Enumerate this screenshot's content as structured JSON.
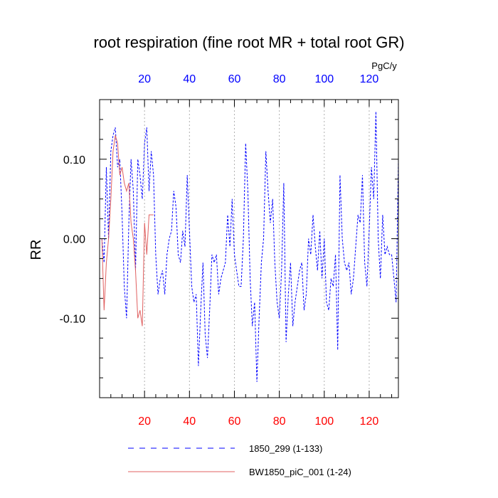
{
  "chart_data": {
    "type": "line",
    "title": "root respiration (fine root MR + total root GR)",
    "ylabel": "RR",
    "xlabel": "",
    "top_axis_units": "PgC/y",
    "xlim": [
      0,
      133
    ],
    "ylim": [
      -0.2,
      0.175
    ],
    "x_ticks": [
      20,
      40,
      60,
      80,
      100,
      120
    ],
    "x_tick_labels": [
      "20",
      "40",
      "60",
      "80",
      "100",
      "120"
    ],
    "y_ticks": [
      0.1,
      0.0,
      -0.1
    ],
    "y_tick_labels": [
      "0.10",
      "0.00",
      "-0.10"
    ],
    "grid": "vertical dotted",
    "colors": {
      "series1": "#0000ff",
      "series2": "#e06060",
      "bottom_ticks": "#ff0000",
      "top_ticks": "#0000ff"
    },
    "series": [
      {
        "name": "1850_299 (1-133)",
        "style": "dashed",
        "color": "#0000ff",
        "x": [
          1,
          2,
          3,
          4,
          5,
          6,
          7,
          8,
          9,
          10,
          11,
          12,
          13,
          14,
          15,
          16,
          17,
          18,
          19,
          20,
          21,
          22,
          23,
          24,
          25,
          26,
          27,
          28,
          29,
          30,
          31,
          32,
          33,
          34,
          35,
          36,
          37,
          38,
          39,
          40,
          41,
          42,
          43,
          44,
          45,
          46,
          47,
          48,
          49,
          50,
          51,
          52,
          53,
          54,
          55,
          56,
          57,
          58,
          59,
          60,
          61,
          62,
          63,
          64,
          65,
          66,
          67,
          68,
          69,
          70,
          71,
          72,
          73,
          74,
          75,
          76,
          77,
          78,
          79,
          80,
          81,
          82,
          83,
          84,
          85,
          86,
          87,
          88,
          89,
          90,
          91,
          92,
          93,
          94,
          95,
          96,
          97,
          98,
          99,
          100,
          101,
          102,
          103,
          104,
          105,
          106,
          107,
          108,
          109,
          110,
          111,
          112,
          113,
          114,
          115,
          116,
          117,
          118,
          119,
          120,
          121,
          122,
          123,
          124,
          125,
          126,
          127,
          128,
          129,
          130,
          131,
          132,
          133
        ],
        "values": [
          0.0,
          -0.03,
          0.09,
          0.0,
          0.11,
          0.13,
          0.14,
          0.09,
          0.1,
          0.03,
          -0.06,
          -0.1,
          0.02,
          0.1,
          0.06,
          -0.04,
          0.1,
          0.08,
          0.05,
          0.12,
          0.14,
          0.06,
          0.11,
          0.08,
          -0.02,
          -0.07,
          -0.05,
          -0.04,
          -0.07,
          -0.02,
          0.0,
          0.01,
          0.06,
          0.04,
          -0.02,
          -0.03,
          0.01,
          -0.01,
          0.08,
          0.01,
          -0.06,
          -0.08,
          -0.07,
          -0.16,
          -0.09,
          -0.03,
          -0.12,
          -0.15,
          -0.09,
          -0.02,
          -0.03,
          -0.02,
          -0.07,
          -0.05,
          -0.04,
          -0.03,
          0.03,
          -0.01,
          0.05,
          -0.02,
          -0.04,
          -0.06,
          -0.06,
          0.0,
          0.12,
          0.06,
          -0.05,
          -0.11,
          -0.08,
          -0.18,
          -0.1,
          -0.03,
          0.0,
          0.11,
          0.06,
          0.02,
          0.05,
          -0.03,
          -0.08,
          -0.1,
          -0.04,
          0.07,
          -0.13,
          -0.07,
          -0.03,
          -0.11,
          -0.08,
          -0.06,
          -0.04,
          -0.03,
          -0.09,
          -0.07,
          0.0,
          -0.02,
          0.03,
          -0.01,
          -0.04,
          0.01,
          -0.05,
          0.0,
          -0.08,
          -0.09,
          -0.05,
          -0.06,
          -0.02,
          -0.14,
          0.08,
          0.0,
          -0.03,
          -0.04,
          -0.03,
          -0.07,
          -0.05,
          -0.01,
          0.03,
          0.02,
          0.08,
          -0.03,
          -0.06,
          0.01,
          0.09,
          0.05,
          0.16,
          0.0,
          -0.05,
          0.03,
          -0.02,
          -0.01,
          -0.02,
          -0.02,
          -0.05,
          -0.08,
          0.1
        ]
      },
      {
        "name": "BW1850_piC_001 (1-24)",
        "style": "solid",
        "color": "#e06060",
        "x": [
          1,
          2,
          3,
          4,
          5,
          6,
          7,
          8,
          9,
          10,
          11,
          12,
          13,
          14,
          15,
          16,
          17,
          18,
          19,
          20,
          21,
          22,
          23,
          24
        ],
        "values": [
          0.0,
          -0.09,
          -0.03,
          0.0,
          0.05,
          0.11,
          0.13,
          0.12,
          0.08,
          0.09,
          0.07,
          0.06,
          0.07,
          0.02,
          0.0,
          -0.04,
          -0.1,
          -0.09,
          -0.11,
          0.02,
          -0.02,
          0.03,
          0.03,
          0.03
        ]
      }
    ]
  }
}
